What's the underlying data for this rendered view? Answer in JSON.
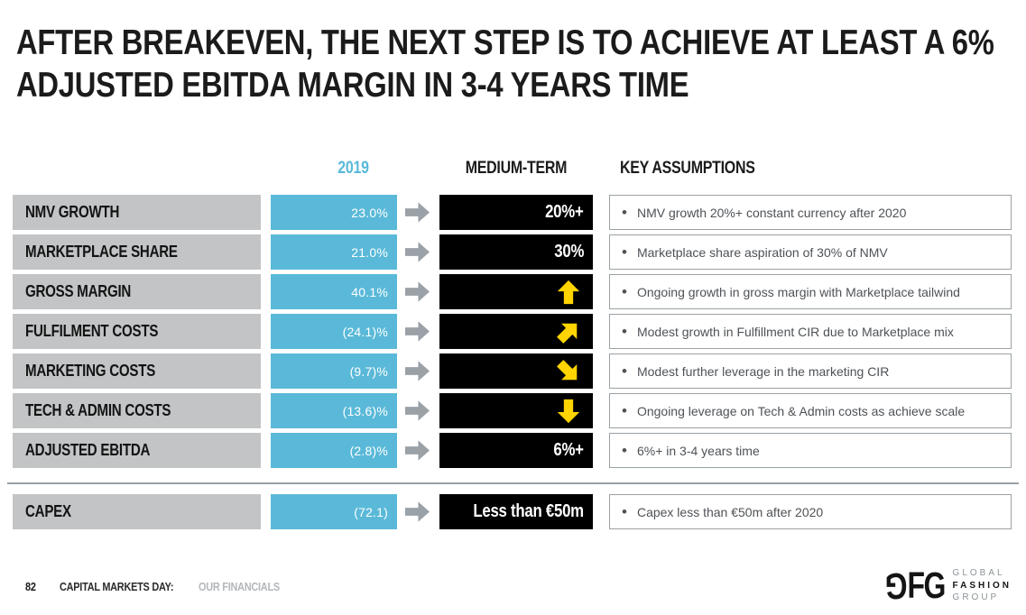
{
  "slide": {
    "title_line1": "AFTER BREAKEVEN, THE NEXT STEP IS TO ACHIEVE AT LEAST A 6%",
    "title_line2": "ADJUSTED EBITDA MARGIN IN 3-4 YEARS TIME"
  },
  "columns": {
    "year": "2019",
    "medium_term": "MEDIUM-TERM",
    "assumptions": "KEY ASSUMPTIONS"
  },
  "colors": {
    "accent_blue": "#5ab9d8",
    "label_gray": "#c2c4c6",
    "transition_arrow_gray": "#9aa1a7",
    "target_black": "#000000",
    "trend_yellow": "#ffd400",
    "box_border_gray": "#9aa1a4"
  },
  "main_rows": [
    {
      "label": "NMV GROWTH",
      "value_2019": "23.0%",
      "medium_term": {
        "type": "text",
        "value": "20%+"
      },
      "assumption": "NMV growth 20%+ constant currency after 2020"
    },
    {
      "label": "MARKETPLACE SHARE",
      "value_2019": "21.0%",
      "medium_term": {
        "type": "text",
        "value": "30%"
      },
      "assumption": "Marketplace share aspiration of 30% of NMV"
    },
    {
      "label": "GROSS MARGIN",
      "value_2019": "40.1%",
      "medium_term": {
        "type": "arrow",
        "direction": "up"
      },
      "assumption": "Ongoing growth in gross margin with Marketplace tailwind"
    },
    {
      "label": "FULFILMENT COSTS",
      "value_2019": "(24.1)%",
      "medium_term": {
        "type": "arrow",
        "direction": "up-right"
      },
      "assumption": "Modest growth in Fulfillment CIR due to Marketplace mix"
    },
    {
      "label": "MARKETING COSTS",
      "value_2019": "(9.7)%",
      "medium_term": {
        "type": "arrow",
        "direction": "down-right"
      },
      "assumption": "Modest further leverage in the marketing CIR"
    },
    {
      "label": "TECH & ADMIN COSTS",
      "value_2019": "(13.6)%",
      "medium_term": {
        "type": "arrow",
        "direction": "down"
      },
      "assumption": "Ongoing leverage on Tech & Admin costs as achieve scale"
    },
    {
      "label": "ADJUSTED EBITDA",
      "value_2019": "(2.8)%",
      "medium_term": {
        "type": "text",
        "value": "6%+"
      },
      "assumption": "6%+ in 3-4 years time"
    }
  ],
  "capex_row": {
    "label": "CAPEX",
    "value_2019": "(72.1)",
    "medium_term": {
      "type": "text",
      "value": "Less than €50m"
    },
    "assumption": "Capex less than €50m after 2020"
  },
  "footer": {
    "page_number": "82",
    "section_bold": "CAPITAL MARKETS DAY:",
    "section_gray": "OUR FINANCIALS"
  },
  "logo": {
    "monogram_g1": "G",
    "monogram_fg": "FG",
    "line1": "GLOBAL",
    "line2": "FASHION",
    "line3": "GROUP"
  }
}
